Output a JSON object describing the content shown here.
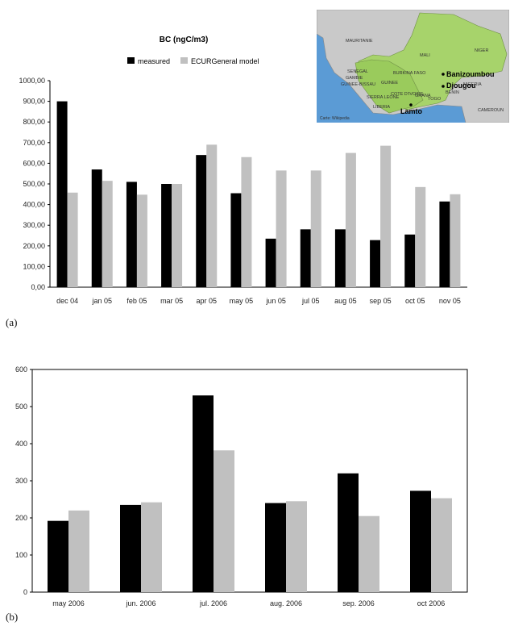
{
  "panels": {
    "a": "(a)",
    "b": "(b)"
  },
  "map": {
    "countries": [
      "MALI",
      "NIGER",
      "BURKINA FASO",
      "GUINEE",
      "COTE D'IVOIRE",
      "BENIN",
      "SENEGAL",
      "GAMBIE",
      "GUINEE-BISSAU",
      "SIERRA LEONE",
      "LIBERIA",
      "GHANA",
      "TOGO",
      "MAURITANIE",
      "NIGERIA",
      "CAMEROUN"
    ],
    "sites": [
      "Banizoumbou",
      "Djougou",
      "Lamto"
    ],
    "credit": "Carte: Wikipedia"
  },
  "chart_data": [
    {
      "type": "bar",
      "title": "BC (ngC/m3)",
      "categories": [
        "dec 04",
        "jan 05",
        "feb 05",
        "mar 05",
        "apr 05",
        "may 05",
        "jun 05",
        "jul 05",
        "aug 05",
        "sep 05",
        "oct 05",
        "nov 05"
      ],
      "series": [
        {
          "name": "measured",
          "color": "#000000",
          "values": [
            900,
            570,
            510,
            500,
            640,
            455,
            235,
            280,
            280,
            228,
            255,
            415
          ]
        },
        {
          "name": "ECURGeneral model",
          "color": "#c0c0c0",
          "values": [
            458,
            515,
            448,
            500,
            690,
            630,
            565,
            565,
            650,
            685,
            485,
            450
          ]
        }
      ],
      "ylim": [
        0,
        1000
      ],
      "yticks": [
        "0,00",
        "100,00",
        "200,00",
        "300,00",
        "400,00",
        "500,00",
        "600,00",
        "700,00",
        "800,00",
        "900,00",
        "1000,00"
      ],
      "grid": false,
      "legend": "top"
    },
    {
      "type": "bar",
      "categories": [
        "may 2006",
        "jun. 2006",
        "jul. 2006",
        "aug. 2006",
        "sep. 2006",
        "oct 2006"
      ],
      "series": [
        {
          "color": "#000000",
          "values": [
            192,
            235,
            530,
            240,
            320,
            273
          ]
        },
        {
          "color": "#c0c0c0",
          "values": [
            220,
            242,
            382,
            245,
            205,
            253
          ]
        }
      ],
      "ylim": [
        0,
        600
      ],
      "yticks": [
        "0",
        "100",
        "200",
        "300",
        "400",
        "500",
        "600"
      ],
      "grid": false,
      "legend": "none"
    }
  ]
}
